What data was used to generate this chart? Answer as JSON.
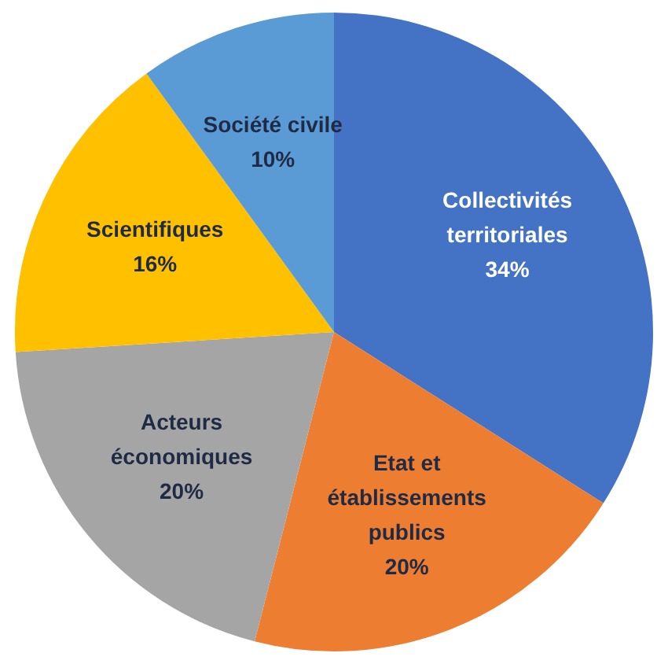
{
  "chart_data": {
    "type": "pie",
    "categories": [
      "Collectivités territoriales",
      "Etat et établissements publics",
      "Acteurs économiques",
      "Scientifiques",
      "Société civile"
    ],
    "values": [
      34,
      20,
      20,
      16,
      10
    ],
    "value_labels": [
      "34%",
      "20%",
      "20%",
      "16%",
      "10%"
    ],
    "colors": [
      "#4472c4",
      "#ed7d31",
      "#a5a5a5",
      "#ffc000",
      "#5b9bd5"
    ],
    "legend": false
  }
}
